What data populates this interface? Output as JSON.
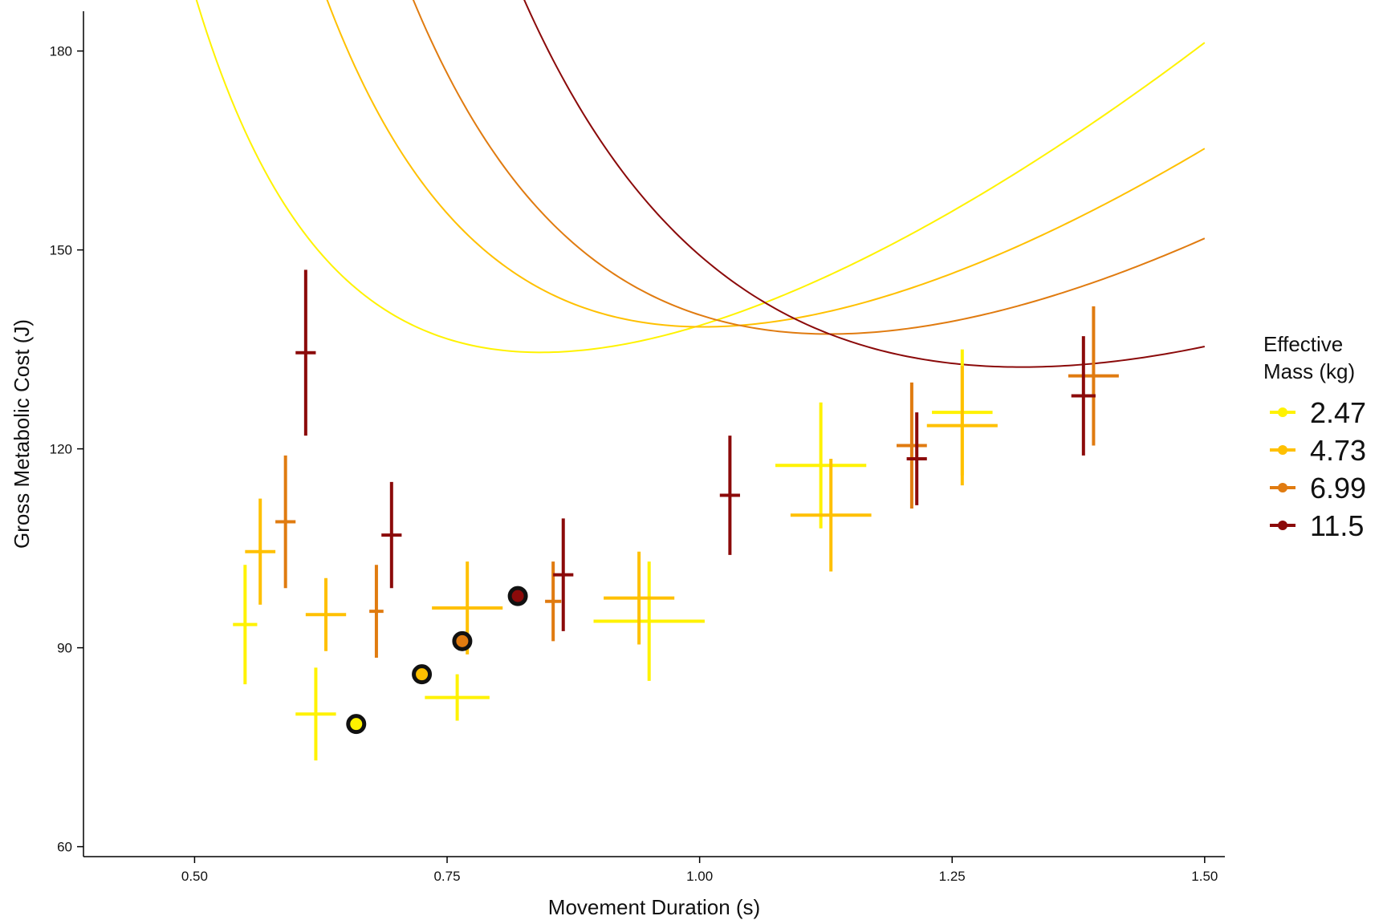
{
  "chart_data": {
    "type": "scatter",
    "title": "",
    "xlabel": "Movement Duration (s)",
    "ylabel": "Gross Metabolic Cost (J)",
    "xlim": [
      0.39,
      1.52
    ],
    "ylim": [
      58.5,
      186
    ],
    "x_ticks": [
      0.5,
      0.75,
      1.0,
      1.25,
      1.5
    ],
    "x_tick_labels": [
      "0.50",
      "0.75",
      "1.00",
      "1.25",
      "1.50"
    ],
    "y_ticks": [
      60,
      90,
      120,
      150,
      180
    ],
    "y_tick_labels": [
      "60",
      "90",
      "120",
      "150",
      "180"
    ],
    "grid": false,
    "legend": {
      "title_lines": [
        "Effective",
        "Mass (kg)"
      ],
      "position": "right"
    },
    "series": [
      {
        "name": "2.47",
        "color": "#FFF200",
        "curve": {
          "x_start": 0.45,
          "x_end": 1.5,
          "a": 11.5,
          "b": 86.5,
          "c": 40.6
        },
        "optimum": {
          "x": 0.66,
          "y": 78.5
        },
        "points": [
          {
            "x": 0.55,
            "y": 93.5,
            "xerr": 0.012,
            "yerr": 9
          },
          {
            "x": 0.62,
            "y": 80.0,
            "xerr": 0.02,
            "yerr": 7
          },
          {
            "x": 0.76,
            "y": 82.5,
            "xerr": 0.032,
            "yerr": 3.5
          },
          {
            "x": 0.95,
            "y": 94.0,
            "xerr": 0.055,
            "yerr": 9
          },
          {
            "x": 1.12,
            "y": 117.5,
            "xerr": 0.045,
            "yerr": 9.5
          },
          {
            "x": 1.26,
            "y": 125.5,
            "xerr": 0.03,
            "yerr": 9.5
          }
        ]
      },
      {
        "name": "4.73",
        "color": "#FFC000",
        "curve": {
          "x_start": 0.46,
          "x_end": 1.5,
          "a": 23.6,
          "b": 80.0,
          "c": 34.8
        },
        "optimum": {
          "x": 0.725,
          "y": 86.0
        },
        "points": [
          {
            "x": 0.565,
            "y": 104.5,
            "xerr": 0.015,
            "yerr": 8
          },
          {
            "x": 0.63,
            "y": 95.0,
            "xerr": 0.02,
            "yerr": 5.5
          },
          {
            "x": 0.77,
            "y": 96.0,
            "xerr": 0.035,
            "yerr": 7
          },
          {
            "x": 0.94,
            "y": 97.5,
            "xerr": 0.035,
            "yerr": 7
          },
          {
            "x": 1.13,
            "y": 110.0,
            "xerr": 0.04,
            "yerr": 8.5
          },
          {
            "x": 1.26,
            "y": 123.5,
            "xerr": 0.035,
            "yerr": 9
          }
        ]
      },
      {
        "name": "6.99",
        "color": "#E07B10",
        "curve": {
          "x_start": 0.503,
          "x_end": 1.5,
          "a": 36.0,
          "b": 74.7,
          "c": 29.5
        },
        "optimum": {
          "x": 0.765,
          "y": 91.0
        },
        "points": [
          {
            "x": 0.59,
            "y": 109.0,
            "xerr": 0.01,
            "yerr": 10
          },
          {
            "x": 0.68,
            "y": 95.5,
            "xerr": 0.007,
            "yerr": 7
          },
          {
            "x": 0.855,
            "y": 97.0,
            "xerr": 0.008,
            "yerr": 6
          },
          {
            "x": 1.21,
            "y": 120.5,
            "xerr": 0.015,
            "yerr": 9.5
          },
          {
            "x": 1.39,
            "y": 131.0,
            "xerr": 0.025,
            "yerr": 10.5
          }
        ]
      },
      {
        "name": "11.5",
        "color": "#8B0A0A",
        "curve": {
          "x_start": 0.547,
          "x_end": 1.5,
          "a": 59.0,
          "b": 68.0,
          "c": 22.2
        },
        "optimum": {
          "x": 0.82,
          "y": 97.8
        },
        "points": [
          {
            "x": 0.61,
            "y": 134.5,
            "xerr": 0.01,
            "yerr": 12.5
          },
          {
            "x": 0.695,
            "y": 107.0,
            "xerr": 0.01,
            "yerr": 8
          },
          {
            "x": 0.865,
            "y": 101.0,
            "xerr": 0.01,
            "yerr": 8.5
          },
          {
            "x": 1.03,
            "y": 113.0,
            "xerr": 0.01,
            "yerr": 9
          },
          {
            "x": 1.215,
            "y": 118.5,
            "xerr": 0.01,
            "yerr": 7
          },
          {
            "x": 1.38,
            "y": 128.0,
            "xerr": 0.012,
            "yerr": 9
          }
        ]
      }
    ]
  }
}
